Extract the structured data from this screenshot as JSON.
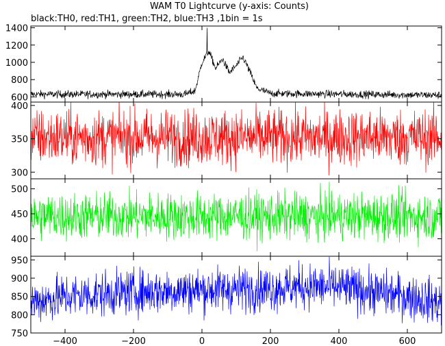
{
  "chart_data": {
    "type": "line",
    "title": "WAM T0 Lightcurve (y-axis: Counts)",
    "subtitle": "black:TH0, red:TH1, green:TH2, blue:TH3 ,1bin = 1s",
    "xlim": [
      -500,
      700
    ],
    "x_ticks": [
      -400,
      -200,
      0,
      200,
      400,
      600
    ],
    "x_tick_labels": [
      "−400",
      "−200",
      "0",
      "200",
      "400",
      "600"
    ],
    "grid": false,
    "panels": [
      {
        "series_label": "TH0",
        "color": "#000000",
        "ylim": [
          540,
          1420
        ],
        "y_ticks": [
          600,
          800,
          1000,
          1200,
          1400
        ],
        "y_tick_labels": [
          "600",
          "800",
          "1000",
          "1200",
          "1400"
        ],
        "profile": {
          "x": [
            -500,
            -50,
            -20,
            0,
            20,
            40,
            60,
            80,
            100,
            120,
            140,
            160,
            200,
            700
          ],
          "y": [
            630,
            630,
            670,
            1000,
            1130,
            930,
            1040,
            880,
            960,
            1060,
            890,
            700,
            640,
            620
          ]
        },
        "noise_amplitude": 40,
        "peak_value": 1400,
        "peak_x": 15
      },
      {
        "series_label": "TH1",
        "color": "#ff0000",
        "ylim": [
          290,
          405
        ],
        "y_ticks": [
          300,
          350,
          400
        ],
        "y_tick_labels": [
          "300",
          "350",
          "400"
        ],
        "profile": {
          "x": [
            -500,
            700
          ],
          "y": [
            352,
            352
          ]
        },
        "noise_amplitude": 38
      },
      {
        "series_label": "TH2",
        "color": "#00ee00",
        "ylim": [
          365,
          520
        ],
        "y_ticks": [
          400,
          450,
          500
        ],
        "y_tick_labels": [
          "400",
          "450",
          "500"
        ],
        "profile": {
          "x": [
            -500,
            700
          ],
          "y": [
            445,
            445
          ]
        },
        "noise_amplitude": 42
      },
      {
        "series_label": "TH3",
        "color": "#0000ff",
        "ylim": [
          750,
          960
        ],
        "y_ticks": [
          750,
          800,
          850,
          900,
          950
        ],
        "y_tick_labels": [
          "750",
          "800",
          "850",
          "900",
          "950"
        ],
        "profile": {
          "x": [
            -500,
            -400,
            -200,
            0,
            200,
            300,
            400,
            500,
            600,
            700
          ],
          "y": [
            835,
            850,
            862,
            868,
            872,
            878,
            875,
            862,
            850,
            832
          ]
        },
        "noise_amplitude": 55
      }
    ]
  }
}
